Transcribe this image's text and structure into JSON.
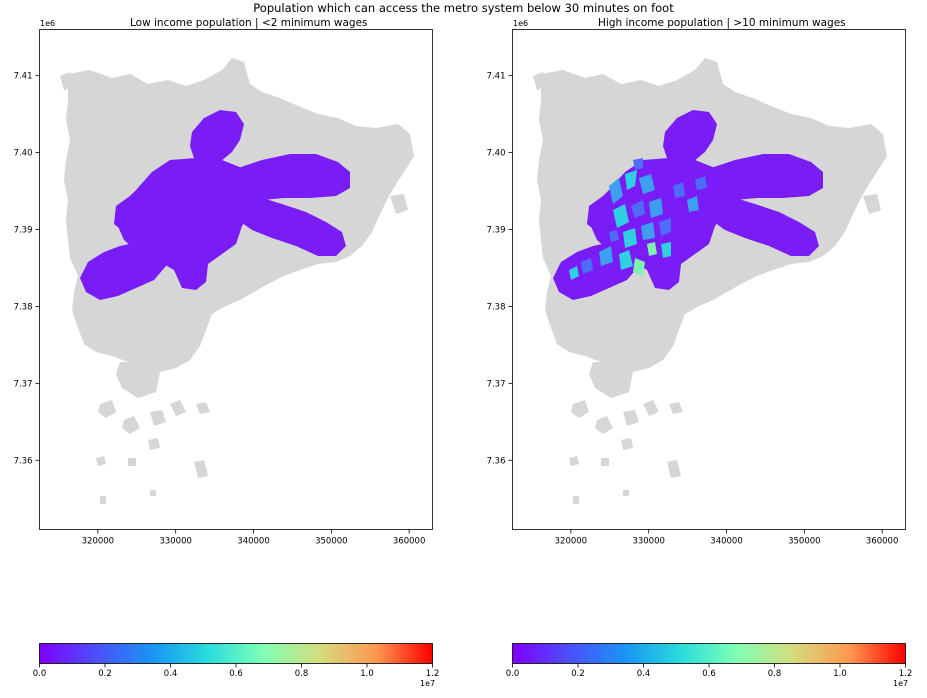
{
  "figure": {
    "title": "Population which can access the metro system below 30 minutes on foot"
  },
  "chart_data": [
    {
      "type": "choropleth",
      "title": "Low income population | <2 minimum wages",
      "x_ticks": [
        "320000",
        "330000",
        "340000",
        "350000",
        "360000"
      ],
      "y_ticks": [
        "7.36",
        "7.37",
        "7.38",
        "7.39",
        "7.40",
        "7.41"
      ],
      "y_offset_label": "1e6",
      "xlim": [
        312500,
        363000
      ],
      "ylim": [
        7351000,
        7416000
      ],
      "colorbar": {
        "cmap": "rainbow",
        "ticks": [
          "0.0",
          "0.2",
          "0.4",
          "0.6",
          "0.8",
          "1.0",
          "1.2"
        ],
        "offset_label": "1e7",
        "range": [
          0,
          12000000
        ]
      }
    },
    {
      "type": "choropleth",
      "title": "High income population | >10 minimum wages",
      "x_ticks": [
        "320000",
        "330000",
        "340000",
        "350000",
        "360000"
      ],
      "y_ticks": [
        "7.36",
        "7.37",
        "7.38",
        "7.39",
        "7.40",
        "7.41"
      ],
      "y_offset_label": "1e6",
      "xlim": [
        312500,
        363000
      ],
      "ylim": [
        7351000,
        7416000
      ],
      "colorbar": {
        "cmap": "rainbow",
        "ticks": [
          "0.0",
          "0.2",
          "0.4",
          "0.6",
          "0.8",
          "1.0",
          "1.2"
        ],
        "offset_label": "1e7",
        "range": [
          0,
          12000000
        ]
      }
    }
  ],
  "colors": {
    "background_region": "#d6d6d6",
    "metro_zone_low": "#7a1cf6",
    "metro_zone_high": "#7a1cf6",
    "high_patch_blue": "#3c9ff0",
    "high_patch_cyan": "#2fd0e2",
    "high_patch_green": "#7ff2b0"
  }
}
